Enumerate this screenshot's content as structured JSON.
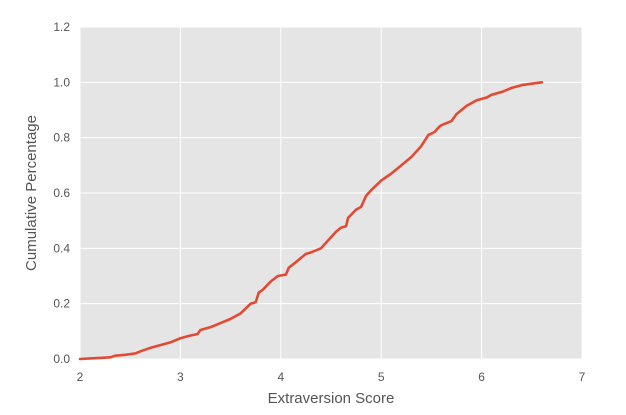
{
  "chart_data": {
    "type": "line",
    "title": "",
    "xlabel": "Extraversion Score",
    "ylabel": "Cumulative Percentage",
    "xlim": [
      2,
      7
    ],
    "ylim": [
      0.0,
      1.2
    ],
    "x_ticks": [
      "2",
      "3",
      "4",
      "5",
      "6",
      "7"
    ],
    "y_ticks": [
      "0.0",
      "0.2",
      "0.4",
      "0.6",
      "0.8",
      "1.0",
      "1.2"
    ],
    "grid": true,
    "legend": "none",
    "colors": {
      "background": "#e5e5e5",
      "grid": "#ffffff",
      "line": "#e24a33"
    },
    "series": [
      {
        "x": [
          2.0,
          2.1,
          2.2,
          2.3,
          2.35,
          2.45,
          2.55,
          2.62,
          2.7,
          2.8,
          2.9,
          3.0,
          3.1,
          3.17,
          3.2,
          3.3,
          3.4,
          3.5,
          3.6,
          3.7,
          3.75,
          3.78,
          3.82,
          3.9,
          3.97,
          4.05,
          4.08,
          4.15,
          4.25,
          4.3,
          4.4,
          4.5,
          4.55,
          4.6,
          4.65,
          4.67,
          4.75,
          4.8,
          4.85,
          4.9,
          5.0,
          5.1,
          5.2,
          5.3,
          5.4,
          5.47,
          5.53,
          5.58,
          5.6,
          5.7,
          5.75,
          5.8,
          5.85,
          5.9,
          5.95,
          6.0,
          6.05,
          6.1,
          6.2,
          6.3,
          6.4,
          6.5,
          6.6
        ],
        "y": [
          0.0,
          0.002,
          0.004,
          0.006,
          0.012,
          0.015,
          0.02,
          0.03,
          0.04,
          0.05,
          0.06,
          0.075,
          0.085,
          0.09,
          0.105,
          0.115,
          0.13,
          0.145,
          0.165,
          0.2,
          0.205,
          0.24,
          0.25,
          0.28,
          0.3,
          0.305,
          0.33,
          0.35,
          0.38,
          0.385,
          0.4,
          0.44,
          0.46,
          0.475,
          0.48,
          0.51,
          0.54,
          0.55,
          0.59,
          0.61,
          0.645,
          0.67,
          0.7,
          0.73,
          0.77,
          0.81,
          0.82,
          0.84,
          0.845,
          0.86,
          0.885,
          0.9,
          0.915,
          0.925,
          0.935,
          0.94,
          0.945,
          0.955,
          0.965,
          0.98,
          0.99,
          0.995,
          1.0
        ]
      }
    ]
  }
}
